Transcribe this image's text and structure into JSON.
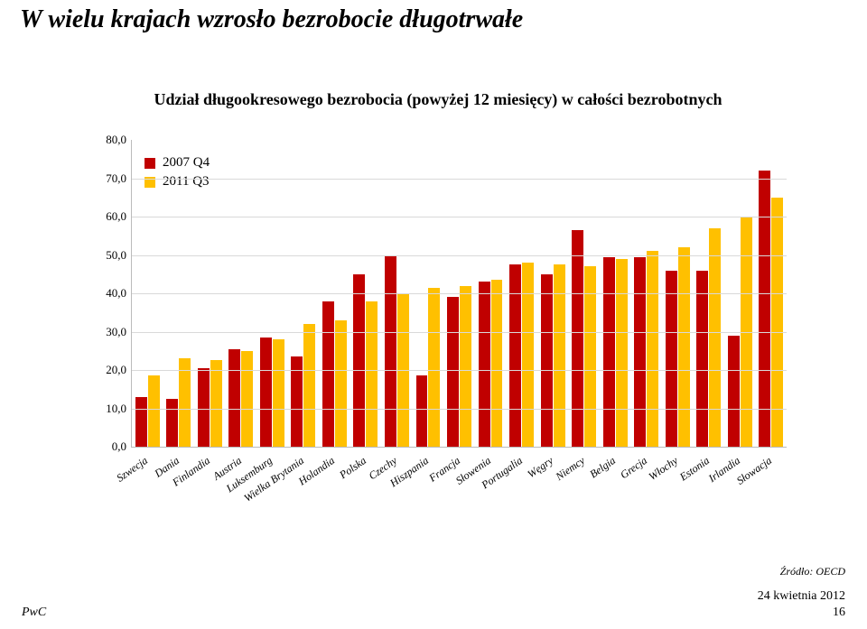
{
  "page": {
    "title": "W wielu krajach wzrosło bezrobocie długotrwałe",
    "source": "Źródło: OECD",
    "brand": "PwC",
    "date": "24 kwietnia 2012",
    "pageNumber": "16"
  },
  "chart": {
    "type": "bar",
    "title": "Udział długookresowego bezrobocia (powyżej 12 miesięcy) w całości bezrobotnych",
    "ylim": [
      0,
      80
    ],
    "ytick_step": 10,
    "ytick_format": ",0",
    "series": [
      {
        "name": "2007 Q4",
        "color": "#c00000"
      },
      {
        "name": "2011 Q3",
        "color": "#ffc000"
      }
    ],
    "categories": [
      {
        "label": "Szwecja",
        "v": [
          13.0,
          18.5
        ]
      },
      {
        "label": "Dania",
        "v": [
          12.5,
          23.0
        ]
      },
      {
        "label": "Finlandia",
        "v": [
          20.5,
          22.5
        ]
      },
      {
        "label": "Austria",
        "v": [
          25.5,
          25.0
        ]
      },
      {
        "label": "Luksemburg",
        "v": [
          28.5,
          28.0
        ]
      },
      {
        "label": "Wielka Brytania",
        "v": [
          23.5,
          32.0
        ]
      },
      {
        "label": "Holandia",
        "v": [
          38.0,
          33.0
        ]
      },
      {
        "label": "Polska",
        "v": [
          45.0,
          38.0
        ]
      },
      {
        "label": "Czechy",
        "v": [
          50.0,
          40.0
        ]
      },
      {
        "label": "Hiszpania",
        "v": [
          18.5,
          41.5
        ]
      },
      {
        "label": "Francja",
        "v": [
          39.0,
          42.0
        ]
      },
      {
        "label": "Słowenia",
        "v": [
          43.0,
          43.5
        ]
      },
      {
        "label": "Portugalia",
        "v": [
          47.5,
          48.0
        ]
      },
      {
        "label": "Węgry",
        "v": [
          45.0,
          47.5
        ]
      },
      {
        "label": "Niemcy",
        "v": [
          56.5,
          47.0
        ]
      },
      {
        "label": "Belgia",
        "v": [
          49.5,
          49.0
        ]
      },
      {
        "label": "Grecja",
        "v": [
          49.5,
          51.0
        ]
      },
      {
        "label": "Włochy",
        "v": [
          46.0,
          52.0
        ]
      },
      {
        "label": "Estonia",
        "v": [
          46.0,
          57.0
        ]
      },
      {
        "label": "Irlandia",
        "v": [
          29.0,
          60.0
        ]
      },
      {
        "label": "Słowacja",
        "v": [
          72.0,
          65.0
        ]
      }
    ],
    "title_fontsize": 18,
    "label_fontsize": 12,
    "background_color": "#ffffff",
    "grid_color": "#d9d9d9",
    "axis_color": "#bbbbbb",
    "bar_group_width": 0.78,
    "bar_gap": 1
  }
}
